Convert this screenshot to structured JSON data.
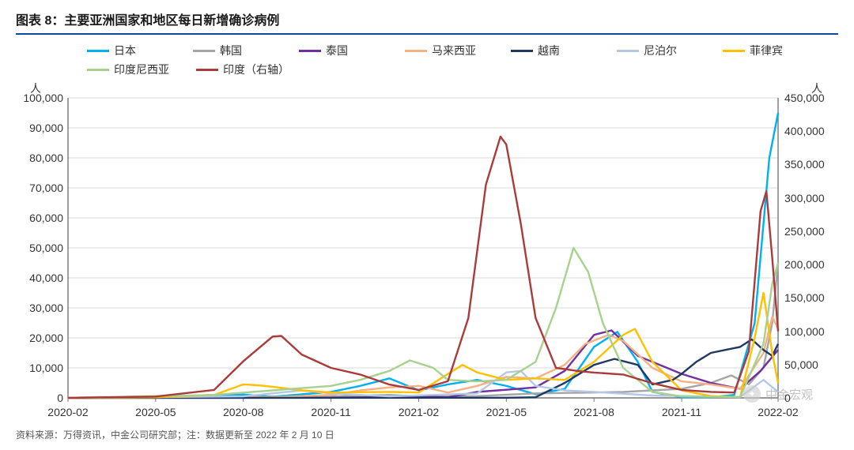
{
  "title": "图表 8：主要亚洲国家和地区每日新增确诊病例",
  "source": "资料来源：万得资讯，中金公司研究部；注：数据更新至 2022 年 2 月 10 日",
  "watermark": "中金宏观",
  "axis": {
    "left_label": "人",
    "right_label": "人",
    "left": {
      "min": 0,
      "max": 100000,
      "step": 10000
    },
    "right": {
      "min": 0,
      "max": 450000,
      "step": 50000
    },
    "x_labels": [
      "2020-02",
      "2020-05",
      "2020-08",
      "2020-11",
      "2021-02",
      "2021-05",
      "2021-08",
      "2021-11",
      "2022-02"
    ],
    "x_positions": [
      0,
      3,
      6,
      9,
      12,
      15,
      18,
      21,
      24.3
    ],
    "x_range": [
      0,
      24.3
    ]
  },
  "colors": {
    "grid": "#d9d9d9",
    "axis": "#777777",
    "text": "#333333",
    "title_rule": "#0a4aa6"
  },
  "series": [
    {
      "key": "japan",
      "label": "日本",
      "color": "#00b0f0",
      "axis": "left"
    },
    {
      "key": "korea",
      "label": "韩国",
      "color": "#a6a6a6",
      "axis": "left"
    },
    {
      "key": "thailand",
      "label": "泰国",
      "color": "#7030a0",
      "axis": "left"
    },
    {
      "key": "malaysia",
      "label": "马来西亚",
      "color": "#f4b183",
      "axis": "left"
    },
    {
      "key": "vietnam",
      "label": "越南",
      "color": "#1f3864",
      "axis": "left"
    },
    {
      "key": "nepal",
      "label": "尼泊尔",
      "color": "#b4c7e7",
      "axis": "left"
    },
    {
      "key": "philippines",
      "label": "菲律宾",
      "color": "#ffc000",
      "axis": "left"
    },
    {
      "key": "indonesia",
      "label": "印度尼西亚",
      "color": "#a9d18e",
      "axis": "left"
    },
    {
      "key": "india",
      "label": "印度（右轴）",
      "color": "#aa3b3b",
      "axis": "right"
    }
  ],
  "data": {
    "japan": [
      [
        0,
        0
      ],
      [
        3,
        50
      ],
      [
        6,
        1100
      ],
      [
        7,
        400
      ],
      [
        9,
        2000
      ],
      [
        10,
        4000
      ],
      [
        11,
        6500
      ],
      [
        12,
        2500
      ],
      [
        13,
        4500
      ],
      [
        14,
        6000
      ],
      [
        15,
        4000
      ],
      [
        16,
        1200
      ],
      [
        17,
        3000
      ],
      [
        18,
        17000
      ],
      [
        18.8,
        22000
      ],
      [
        19.5,
        12000
      ],
      [
        20,
        2000
      ],
      [
        21,
        200
      ],
      [
        22,
        200
      ],
      [
        22.8,
        1000
      ],
      [
        23.5,
        25000
      ],
      [
        24,
        80000
      ],
      [
        24.3,
        95000
      ]
    ],
    "korea": [
      [
        0,
        0
      ],
      [
        1,
        300
      ],
      [
        3,
        20
      ],
      [
        6,
        300
      ],
      [
        9,
        500
      ],
      [
        11,
        1000
      ],
      [
        12,
        500
      ],
      [
        14,
        600
      ],
      [
        16,
        1500
      ],
      [
        18,
        1800
      ],
      [
        19,
        2000
      ],
      [
        20,
        2500
      ],
      [
        21,
        3000
      ],
      [
        22,
        5000
      ],
      [
        22.7,
        7500
      ],
      [
        23.3,
        4500
      ],
      [
        23.8,
        10000
      ],
      [
        24.1,
        25000
      ],
      [
        24.3,
        45000
      ]
    ],
    "thailand": [
      [
        0,
        0
      ],
      [
        9,
        50
      ],
      [
        12,
        500
      ],
      [
        13,
        200
      ],
      [
        14,
        2000
      ],
      [
        15,
        2700
      ],
      [
        16,
        3500
      ],
      [
        17,
        9000
      ],
      [
        18,
        21000
      ],
      [
        18.6,
        22500
      ],
      [
        19.5,
        14000
      ],
      [
        20.5,
        10000
      ],
      [
        21,
        8000
      ],
      [
        22,
        5000
      ],
      [
        23,
        3000
      ],
      [
        23.7,
        9000
      ],
      [
        24.3,
        16000
      ]
    ],
    "malaysia": [
      [
        0,
        0
      ],
      [
        7,
        200
      ],
      [
        9,
        1000
      ],
      [
        10,
        2500
      ],
      [
        11,
        3500
      ],
      [
        12,
        4000
      ],
      [
        13,
        1800
      ],
      [
        14,
        4000
      ],
      [
        15,
        7000
      ],
      [
        16,
        6500
      ],
      [
        17,
        11000
      ],
      [
        17.7,
        18000
      ],
      [
        18.5,
        21000
      ],
      [
        19,
        19000
      ],
      [
        20,
        10000
      ],
      [
        21,
        5500
      ],
      [
        22,
        4500
      ],
      [
        23,
        3000
      ],
      [
        23.8,
        15000
      ],
      [
        24.1,
        27000
      ],
      [
        24.3,
        23000
      ]
    ],
    "vietnam": [
      [
        0,
        0
      ],
      [
        15,
        50
      ],
      [
        16,
        200
      ],
      [
        17,
        5000
      ],
      [
        18,
        11000
      ],
      [
        18.7,
        13000
      ],
      [
        19.5,
        11000
      ],
      [
        20,
        4500
      ],
      [
        20.7,
        6000
      ],
      [
        21,
        8000
      ],
      [
        21.5,
        12000
      ],
      [
        22,
        15000
      ],
      [
        22.5,
        16000
      ],
      [
        23,
        17000
      ],
      [
        23.4,
        19500
      ],
      [
        23.8,
        16000
      ],
      [
        24.1,
        14000
      ],
      [
        24.3,
        18000
      ]
    ],
    "nepal": [
      [
        0,
        0
      ],
      [
        6,
        500
      ],
      [
        8,
        2500
      ],
      [
        9,
        1500
      ],
      [
        11,
        500
      ],
      [
        14,
        1500
      ],
      [
        15,
        8500
      ],
      [
        15.5,
        9000
      ],
      [
        16,
        4000
      ],
      [
        17,
        2500
      ],
      [
        18,
        2000
      ],
      [
        20,
        800
      ],
      [
        23,
        300
      ],
      [
        23.8,
        6000
      ],
      [
        24.3,
        2000
      ]
    ],
    "philippines": [
      [
        0,
        0
      ],
      [
        3,
        200
      ],
      [
        5,
        1000
      ],
      [
        6,
        4500
      ],
      [
        6.5,
        4200
      ],
      [
        7,
        3700
      ],
      [
        8,
        2500
      ],
      [
        9,
        1800
      ],
      [
        11,
        2000
      ],
      [
        12,
        1800
      ],
      [
        13,
        8000
      ],
      [
        13.5,
        11000
      ],
      [
        14,
        8500
      ],
      [
        15,
        6000
      ],
      [
        16,
        6500
      ],
      [
        17,
        6000
      ],
      [
        18,
        12000
      ],
      [
        19,
        21000
      ],
      [
        19.4,
        23000
      ],
      [
        20,
        12000
      ],
      [
        21,
        2500
      ],
      [
        22,
        600
      ],
      [
        23,
        300
      ],
      [
        23.5,
        20000
      ],
      [
        23.8,
        35000
      ],
      [
        24.1,
        15000
      ],
      [
        24.3,
        5000
      ]
    ],
    "indonesia": [
      [
        0,
        0
      ],
      [
        5,
        1000
      ],
      [
        7,
        2500
      ],
      [
        9,
        4000
      ],
      [
        10,
        6000
      ],
      [
        11,
        9000
      ],
      [
        11.7,
        12500
      ],
      [
        12.5,
        10000
      ],
      [
        13,
        6000
      ],
      [
        14,
        5500
      ],
      [
        15,
        6000
      ],
      [
        16,
        12000
      ],
      [
        16.7,
        30000
      ],
      [
        17.3,
        50000
      ],
      [
        17.8,
        42000
      ],
      [
        18.3,
        25000
      ],
      [
        19,
        10000
      ],
      [
        20,
        2000
      ],
      [
        21,
        500
      ],
      [
        23,
        300
      ],
      [
        23.8,
        18000
      ],
      [
        24.1,
        38000
      ],
      [
        24.3,
        45000
      ]
    ],
    "india": [
      [
        0,
        0
      ],
      [
        3,
        2000
      ],
      [
        5,
        12000
      ],
      [
        6,
        55000
      ],
      [
        7,
        92000
      ],
      [
        7.3,
        93000
      ],
      [
        8,
        65000
      ],
      [
        9,
        45000
      ],
      [
        10,
        35000
      ],
      [
        11,
        20000
      ],
      [
        12,
        12000
      ],
      [
        13,
        25000
      ],
      [
        13.7,
        120000
      ],
      [
        14.3,
        320000
      ],
      [
        14.8,
        392000
      ],
      [
        15,
        380000
      ],
      [
        15.5,
        260000
      ],
      [
        16,
        120000
      ],
      [
        16.7,
        45000
      ],
      [
        17.5,
        40000
      ],
      [
        18,
        38000
      ],
      [
        19,
        35000
      ],
      [
        20,
        22000
      ],
      [
        21,
        12000
      ],
      [
        22,
        9000
      ],
      [
        22.8,
        8000
      ],
      [
        23.3,
        70000
      ],
      [
        23.7,
        280000
      ],
      [
        23.9,
        310000
      ],
      [
        24.1,
        210000
      ],
      [
        24.3,
        100000
      ]
    ]
  },
  "style": {
    "line_width": 2.4,
    "title_fontsize": 16,
    "tick_fontsize": 14,
    "source_fontsize": 12
  }
}
